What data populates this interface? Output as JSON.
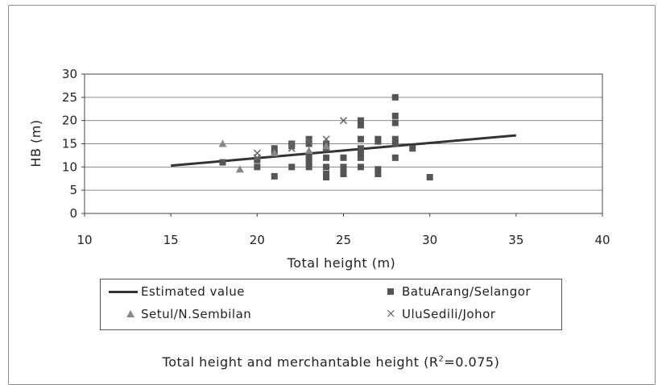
{
  "chart_data": {
    "type": "scatter",
    "title": "Total height and merchantable height (R²=0.075)",
    "caption_prefix": "Total height and merchantable height (R",
    "caption_sup": "2",
    "caption_suffix": "=0.075)",
    "xlabel": "Total height (m)",
    "ylabel": "HB (m)",
    "xlim": [
      10,
      40
    ],
    "ylim": [
      0,
      30
    ],
    "xticks": [
      10,
      15,
      20,
      25,
      30,
      35,
      40
    ],
    "yticks": [
      0,
      5,
      10,
      15,
      20,
      25,
      30
    ],
    "grid": "horizontal",
    "legend_position": "bottom",
    "series": [
      {
        "name": "Estimated value",
        "marker": "line",
        "color": "#333333",
        "points": [
          [
            15,
            10.3
          ],
          [
            35,
            16.8
          ]
        ]
      },
      {
        "name": "BatuArang/Selangor",
        "marker": "square",
        "color": "#555555",
        "points": [
          [
            18,
            11
          ],
          [
            20,
            10
          ],
          [
            20,
            11.5
          ],
          [
            21,
            8
          ],
          [
            21,
            14
          ],
          [
            21,
            13
          ],
          [
            22,
            15
          ],
          [
            22,
            10
          ],
          [
            22,
            14.5
          ],
          [
            23,
            16
          ],
          [
            23,
            15
          ],
          [
            23,
            12
          ],
          [
            23,
            11
          ],
          [
            23,
            10
          ],
          [
            24,
            15
          ],
          [
            24,
            12
          ],
          [
            24,
            10
          ],
          [
            24,
            8.5
          ],
          [
            24,
            7.8
          ],
          [
            24,
            14
          ],
          [
            25,
            12
          ],
          [
            25,
            10
          ],
          [
            25,
            9
          ],
          [
            25,
            8.5
          ],
          [
            26,
            20
          ],
          [
            26,
            19
          ],
          [
            26,
            16
          ],
          [
            26,
            14
          ],
          [
            26,
            13
          ],
          [
            26,
            12
          ],
          [
            26,
            10
          ],
          [
            27,
            16
          ],
          [
            27,
            15.5
          ],
          [
            27,
            9.5
          ],
          [
            27,
            8.5
          ],
          [
            28,
            25
          ],
          [
            28,
            21
          ],
          [
            28,
            19.5
          ],
          [
            28,
            16
          ],
          [
            28,
            15
          ],
          [
            28,
            12
          ],
          [
            29,
            14
          ],
          [
            30,
            7.8
          ]
        ]
      },
      {
        "name": "Setul/N.Sembilan",
        "marker": "triangle",
        "color": "#888888",
        "points": [
          [
            18,
            15
          ],
          [
            19,
            9.5
          ],
          [
            21,
            13
          ],
          [
            23,
            13.5
          ],
          [
            24,
            14.5
          ]
        ]
      },
      {
        "name": "UluSedili/Johor",
        "marker": "x",
        "color": "#666666",
        "points": [
          [
            20,
            13
          ],
          [
            20,
            12
          ],
          [
            22,
            15
          ],
          [
            22,
            14
          ],
          [
            23,
            15.5
          ],
          [
            24,
            16
          ],
          [
            25,
            20
          ]
        ]
      }
    ]
  }
}
